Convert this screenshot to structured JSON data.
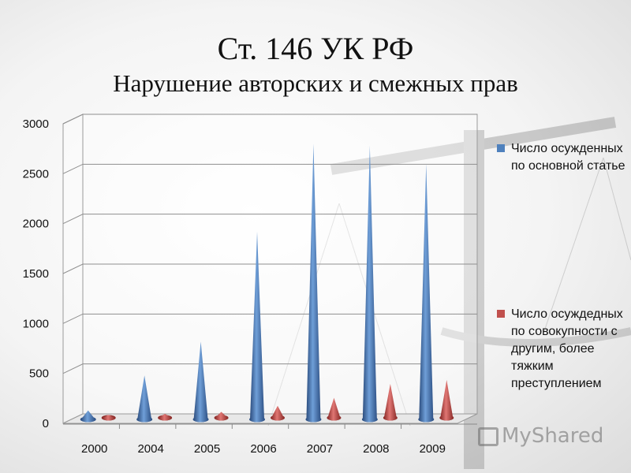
{
  "title_line1": "Ст. 146 УК РФ",
  "title_line2": "Нарушение авторских и смежных прав",
  "watermark": "MyShared",
  "chart_data": {
    "type": "bar",
    "shape": "cone-3d",
    "categories": [
      "2000",
      "2004",
      "2005",
      "2006",
      "2007",
      "2008",
      "2009"
    ],
    "series": [
      {
        "name": "Число осужденных по основной статье",
        "color": "#4f81bd",
        "values": [
          90,
          440,
          780,
          1880,
          2760,
          2740,
          2560
        ]
      },
      {
        "name": "Число осуждедных по совокупности с другим, более тяжким преступлением",
        "color": "#c0504d",
        "values": [
          30,
          40,
          60,
          120,
          200,
          340,
          380
        ]
      }
    ],
    "ylim": [
      0,
      3000
    ],
    "yticks": [
      0,
      500,
      1000,
      1500,
      2000,
      2500,
      3000
    ],
    "grid": true,
    "legend_position": "right"
  }
}
